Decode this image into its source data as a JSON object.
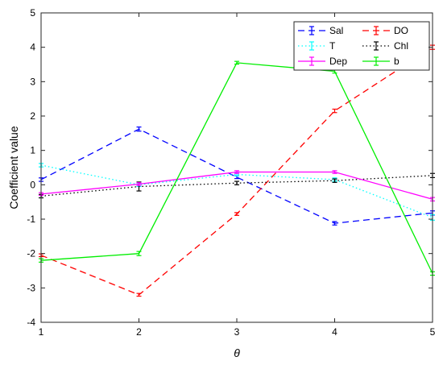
{
  "chart_data": {
    "type": "line",
    "xlabel": "θ",
    "ylabel": "Coefficient value",
    "xlim": [
      1,
      5
    ],
    "ylim": [
      -4,
      5
    ],
    "x": [
      1,
      2,
      3,
      4,
      5
    ],
    "xticks": [
      "1",
      "2",
      "3",
      "4",
      "5"
    ],
    "yticks": [
      "-4",
      "-3",
      "-2",
      "-1",
      "0",
      "1",
      "2",
      "3",
      "4",
      "5"
    ],
    "grid": false,
    "legend_position": "top-right",
    "series": [
      {
        "name": "Sal",
        "color": "#0000ff",
        "dash": "dashed",
        "values": [
          0.15,
          1.62,
          0.22,
          -1.12,
          -0.82
        ],
        "errors": [
          0.05,
          0.06,
          0.04,
          0.05,
          0.06
        ]
      },
      {
        "name": "DO",
        "color": "#ff0000",
        "dash": "dashed",
        "values": [
          -2.05,
          -3.2,
          -0.85,
          2.15,
          4.0
        ],
        "errors": [
          0.04,
          0.04,
          0.04,
          0.05,
          0.06
        ]
      },
      {
        "name": "T",
        "color": "#00ffff",
        "dash": "dotted",
        "values": [
          0.57,
          0.0,
          0.3,
          0.15,
          -0.95
        ],
        "errors": [
          0.05,
          0.05,
          0.04,
          0.05,
          0.08
        ]
      },
      {
        "name": "Chl",
        "color": "#000000",
        "dash": "dotted",
        "values": [
          -0.33,
          -0.05,
          0.05,
          0.12,
          0.27
        ],
        "errors": [
          0.05,
          0.13,
          0.05,
          0.05,
          0.06
        ]
      },
      {
        "name": "Dep",
        "color": "#ff00ff",
        "dash": "solid",
        "values": [
          -0.27,
          0.02,
          0.37,
          0.37,
          -0.42
        ],
        "errors": [
          0.04,
          0.04,
          0.04,
          0.04,
          0.05
        ]
      },
      {
        "name": "b",
        "color": "#00ee00",
        "dash": "solid",
        "values": [
          -2.2,
          -2.0,
          3.55,
          3.3,
          -2.58
        ],
        "errors": [
          0.05,
          0.06,
          0.04,
          0.05,
          0.05
        ]
      }
    ]
  }
}
